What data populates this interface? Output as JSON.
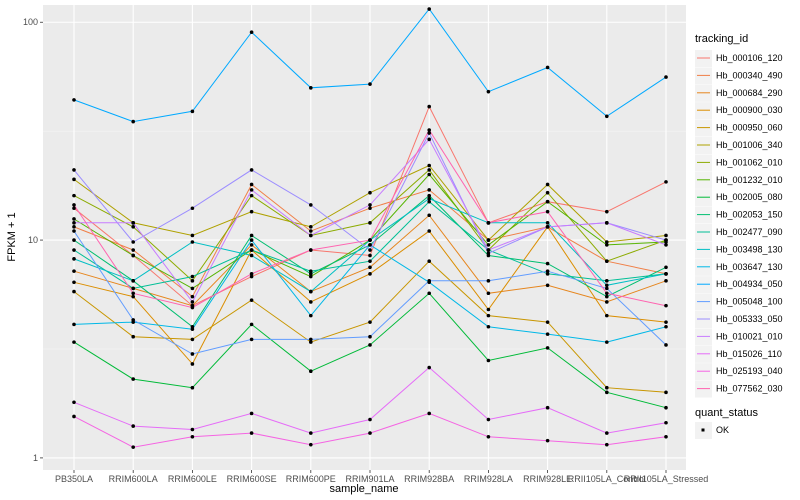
{
  "chart_data": {
    "type": "line",
    "xlabel": "sample_name",
    "ylabel": "FPKM + 1",
    "yscale": "log10",
    "ylim": [
      0.88,
      120
    ],
    "y_ticks": [
      1,
      10,
      100
    ],
    "y_tick_labels": [
      "1",
      "10",
      "100"
    ],
    "grid": true,
    "legend_position": "right",
    "categories": [
      "PB350LA",
      "RRIM600LA",
      "RRIM600LE",
      "RRIM600SE",
      "RRIM600PE",
      "RRIM901LA",
      "RRIM928BA",
      "RRIM928LA",
      "RRIM928LE",
      "RRII105LA_Control",
      "RRII105LA_Stressed"
    ],
    "legend_color_title": "tracking_id",
    "legend_shape_title": "quant_status",
    "legend_shape_entries": [
      "OK"
    ],
    "series": [
      {
        "name": "Hb_000106_120",
        "color": "#F8766D",
        "values": [
          14.0,
          8.5,
          5.0,
          6.8,
          9.0,
          8.5,
          41.0,
          12.0,
          15.0,
          13.5,
          18.5
        ]
      },
      {
        "name": "Hb_000340_490",
        "color": "#F07F46",
        "values": [
          11.5,
          9.0,
          5.5,
          18.0,
          11.0,
          14.0,
          17.0,
          10.0,
          11.5,
          8.0,
          7.0
        ]
      },
      {
        "name": "Hb_000684_290",
        "color": "#E6861E",
        "values": [
          7.2,
          6.0,
          5.0,
          9.5,
          5.8,
          7.5,
          13.0,
          5.7,
          6.2,
          5.2,
          6.5
        ]
      },
      {
        "name": "Hb_000900_030",
        "color": "#DB8E00",
        "values": [
          6.4,
          5.5,
          2.7,
          9.0,
          5.2,
          7.0,
          11.0,
          4.8,
          11.5,
          4.5,
          4.2
        ]
      },
      {
        "name": "Hb_000950_060",
        "color": "#C89600",
        "values": [
          5.8,
          3.6,
          3.5,
          5.3,
          3.4,
          4.2,
          8.0,
          4.5,
          4.2,
          2.1,
          2.0
        ]
      },
      {
        "name": "Hb_001006_340",
        "color": "#AFA100",
        "values": [
          19.0,
          12.0,
          10.5,
          13.5,
          11.5,
          16.5,
          22.0,
          10.0,
          18.0,
          9.8,
          10.5
        ]
      },
      {
        "name": "Hb_001062_010",
        "color": "#8CAB00",
        "values": [
          16.0,
          11.5,
          6.5,
          16.0,
          10.5,
          12.0,
          21.0,
          9.0,
          16.5,
          8.0,
          10.0
        ]
      },
      {
        "name": "Hb_001232_010",
        "color": "#55B400",
        "values": [
          12.5,
          8.5,
          6.0,
          9.0,
          6.8,
          10.0,
          20.0,
          9.5,
          15.0,
          9.5,
          9.8
        ]
      },
      {
        "name": "Hb_002005_080",
        "color": "#00BA38",
        "values": [
          3.4,
          2.3,
          2.1,
          4.1,
          2.5,
          3.3,
          5.7,
          2.8,
          3.2,
          2.0,
          1.7
        ]
      },
      {
        "name": "Hb_002053_150",
        "color": "#00BE70",
        "values": [
          10.0,
          6.5,
          4.0,
          10.5,
          7.0,
          9.5,
          16.0,
          8.5,
          7.8,
          5.5,
          7.5
        ]
      },
      {
        "name": "Hb_002477_090",
        "color": "#00BF96",
        "values": [
          9.0,
          6.0,
          6.8,
          9.0,
          7.2,
          8.0,
          15.0,
          9.0,
          7.0,
          6.5,
          7.0
        ]
      },
      {
        "name": "Hb_003498_130",
        "color": "#00BFC4",
        "values": [
          8.2,
          6.5,
          9.8,
          8.5,
          5.8,
          10.0,
          15.5,
          12.0,
          12.0,
          6.2,
          7.0
        ]
      },
      {
        "name": "Hb_003647_130",
        "color": "#00B8E7",
        "values": [
          4.1,
          4.2,
          3.9,
          10.0,
          4.5,
          9.5,
          6.4,
          4.0,
          3.7,
          3.4,
          4.0
        ]
      },
      {
        "name": "Hb_004934_050",
        "color": "#00A9FF",
        "values": [
          44.0,
          35.0,
          39.0,
          90.0,
          50.0,
          52.0,
          115.0,
          48.0,
          62.0,
          37.0,
          56.0
        ]
      },
      {
        "name": "Hb_005048_100",
        "color": "#619CFF",
        "values": [
          11.0,
          4.3,
          3.0,
          3.5,
          3.5,
          3.6,
          6.5,
          6.5,
          7.2,
          6.0,
          3.3
        ]
      },
      {
        "name": "Hb_005333_050",
        "color": "#9C8DFF",
        "values": [
          21.0,
          9.8,
          14.0,
          21.0,
          14.5,
          9.0,
          31.0,
          8.7,
          11.5,
          12.0,
          10.0
        ]
      },
      {
        "name": "Hb_010021_010",
        "color": "#C77CFF",
        "values": [
          12.0,
          12.0,
          5.2,
          17.0,
          10.5,
          14.5,
          29.0,
          9.0,
          11.5,
          12.0,
          9.5
        ]
      },
      {
        "name": "Hb_015026_110",
        "color": "#E56CF8",
        "values": [
          1.8,
          1.4,
          1.35,
          1.6,
          1.3,
          1.5,
          2.6,
          1.5,
          1.7,
          1.3,
          1.45
        ]
      },
      {
        "name": "Hb_025193_040",
        "color": "#F564E3",
        "values": [
          1.55,
          1.12,
          1.25,
          1.3,
          1.15,
          1.3,
          1.6,
          1.25,
          1.2,
          1.15,
          1.25
        ]
      },
      {
        "name": "Hb_077562_030",
        "color": "#FF64B0",
        "values": [
          14.5,
          5.7,
          4.9,
          7.0,
          9.0,
          10.0,
          32.0,
          12.0,
          13.5,
          5.7,
          5.0
        ]
      }
    ]
  }
}
